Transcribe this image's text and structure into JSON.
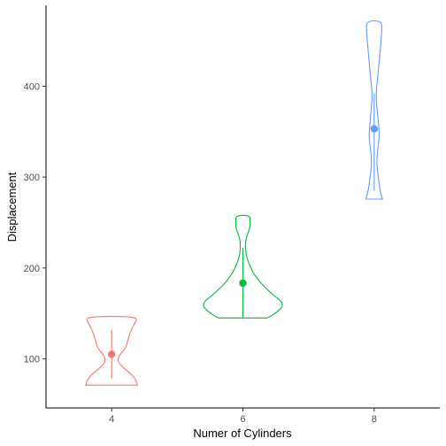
{
  "chart_data": {
    "type": "violin",
    "xlabel": "Numer of Cylinders",
    "ylabel": "Displacement",
    "categories": [
      "4",
      "6",
      "8"
    ],
    "ylim": [
      46,
      489
    ],
    "yticks": [
      100,
      200,
      300,
      400
    ],
    "grid": false,
    "legend": "none",
    "series": [
      {
        "category": "4",
        "color": "#F8766D",
        "min": 71.1,
        "max": 146.7,
        "mean": 105.1,
        "sd_low": 78.4,
        "sd_high": 131.6,
        "density": [
          [
            71.1,
            0.44
          ],
          [
            80,
            0.39
          ],
          [
            90,
            0.2
          ],
          [
            97,
            0.1
          ],
          [
            104,
            0.13
          ],
          [
            112,
            0.24
          ],
          [
            122,
            0.28
          ],
          [
            132,
            0.33
          ],
          [
            140,
            0.4
          ],
          [
            146.7,
            0.44
          ]
        ]
      },
      {
        "category": "6",
        "color": "#00BA38",
        "min": 145,
        "max": 258,
        "mean": 183.3,
        "sd_low": 145,
        "sd_high": 222,
        "density": [
          [
            145,
            0.41
          ],
          [
            150,
            0.55
          ],
          [
            155,
            0.64
          ],
          [
            160,
            0.68
          ],
          [
            165,
            0.62
          ],
          [
            170,
            0.52
          ],
          [
            176,
            0.42
          ],
          [
            184,
            0.29
          ],
          [
            195,
            0.17
          ],
          [
            205,
            0.1
          ],
          [
            215,
            0.05
          ],
          [
            228,
            0.04
          ],
          [
            236,
            0.07
          ],
          [
            244,
            0.12
          ],
          [
            250,
            0.12
          ],
          [
            258,
            0.12
          ]
        ]
      },
      {
        "category": "8",
        "color": "#619CFF",
        "min": 275.8,
        "max": 472,
        "mean": 353.1,
        "sd_low": 285,
        "sd_high": 392,
        "density": [
          [
            275.8,
            0.14
          ],
          [
            285,
            0.1
          ],
          [
            300,
            0.07
          ],
          [
            315,
            0.04
          ],
          [
            330,
            0.06
          ],
          [
            345,
            0.09
          ],
          [
            360,
            0.07
          ],
          [
            375,
            0.05
          ],
          [
            390,
            0.03
          ],
          [
            410,
            0.06
          ],
          [
            430,
            0.09
          ],
          [
            445,
            0.11
          ],
          [
            460,
            0.13
          ],
          [
            472,
            0.13
          ]
        ]
      }
    ]
  }
}
